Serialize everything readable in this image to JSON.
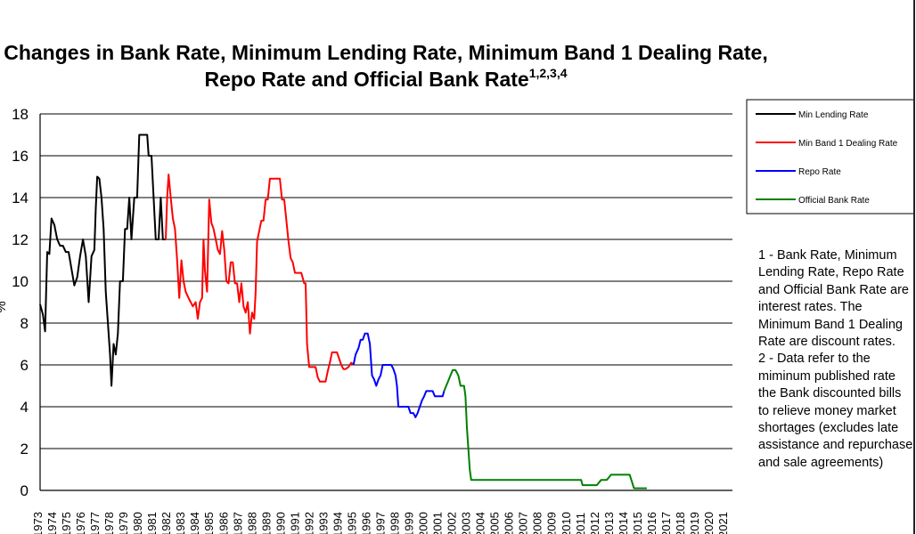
{
  "title": "Changes in Bank Rate, Minimum Lending Rate, Minimum Band 1 Dealing Rate, Repo Rate and Official Bank Rate",
  "title_superscript": "1,2,3,4",
  "ylabel": "%",
  "notes": [
    "1 - Bank Rate, Minimum Lending Rate, Repo Rate and Official Bank Rate are interest rates.  The Minimum Band 1 Dealing Rate are discount rates.",
    "2 - Data refer to the miminum published rate the Bank discounted bills to relieve money market shortages (excludes late assistance and repurchase and sale agreements)"
  ],
  "chart_data": {
    "type": "line",
    "title": "Changes in Bank Rate, Minimum Lending Rate, Minimum Band 1 Dealing Rate, Repo Rate and Official Bank Rate",
    "ylabel": "%",
    "ylim": [
      0,
      18
    ],
    "yticks": [
      0,
      2,
      4,
      6,
      8,
      10,
      12,
      14,
      16,
      18
    ],
    "xlim": [
      1973,
      2021.5
    ],
    "xticks": [
      1973,
      1974,
      1975,
      1976,
      1977,
      1978,
      1979,
      1980,
      1981,
      1982,
      1983,
      1984,
      1985,
      1986,
      1987,
      1988,
      1989,
      1990,
      1991,
      1992,
      1993,
      1994,
      1995,
      1996,
      1997,
      1998,
      1999,
      2000,
      2001,
      2002,
      2003,
      2004,
      2005,
      2006,
      2007,
      2008,
      2009,
      2010,
      2011,
      2012,
      2013,
      2014,
      2015,
      2016,
      2017,
      2018,
      2019,
      2020,
      2021
    ],
    "grid": "horizontal",
    "legend_position": "top-right",
    "series": [
      {
        "name": "Min Lending Rate",
        "color": "#000000",
        "points": [
          [
            1973.0,
            8.9
          ],
          [
            1973.2,
            8.4
          ],
          [
            1973.35,
            7.6
          ],
          [
            1973.5,
            11.4
          ],
          [
            1973.65,
            11.3
          ],
          [
            1973.8,
            13.0
          ],
          [
            1974.0,
            12.7
          ],
          [
            1974.2,
            12.0
          ],
          [
            1974.4,
            11.7
          ],
          [
            1974.6,
            11.7
          ],
          [
            1974.8,
            11.4
          ],
          [
            1975.0,
            11.4
          ],
          [
            1975.2,
            10.6
          ],
          [
            1975.4,
            9.8
          ],
          [
            1975.6,
            10.2
          ],
          [
            1975.8,
            11.2
          ],
          [
            1976.0,
            12.0
          ],
          [
            1976.2,
            11.2
          ],
          [
            1976.4,
            9.0
          ],
          [
            1976.6,
            11.2
          ],
          [
            1976.8,
            11.5
          ],
          [
            1976.9,
            13.5
          ],
          [
            1977.0,
            15.0
          ],
          [
            1977.15,
            14.9
          ],
          [
            1977.3,
            14.0
          ],
          [
            1977.45,
            12.5
          ],
          [
            1977.6,
            9.5
          ],
          [
            1977.75,
            8.0
          ],
          [
            1977.9,
            6.5
          ],
          [
            1978.0,
            5.0
          ],
          [
            1978.15,
            7.0
          ],
          [
            1978.3,
            6.5
          ],
          [
            1978.45,
            7.5
          ],
          [
            1978.6,
            10.0
          ],
          [
            1978.8,
            10.0
          ],
          [
            1978.95,
            12.5
          ],
          [
            1979.1,
            12.5
          ],
          [
            1979.25,
            14.0
          ],
          [
            1979.4,
            12.0
          ],
          [
            1979.6,
            14.0
          ],
          [
            1979.8,
            14.0
          ],
          [
            1979.95,
            17.0
          ],
          [
            1980.5,
            17.0
          ],
          [
            1980.6,
            16.0
          ],
          [
            1980.8,
            16.0
          ],
          [
            1980.95,
            14.0
          ],
          [
            1981.1,
            12.0
          ],
          [
            1981.3,
            12.0
          ],
          [
            1981.45,
            14.0
          ],
          [
            1981.6,
            12.0
          ],
          [
            1981.8,
            12.0
          ]
        ]
      },
      {
        "name": "Min Band 1 Dealing Rate",
        "color": "#ff0000",
        "points": [
          [
            1981.8,
            12.0
          ],
          [
            1981.9,
            14.0
          ],
          [
            1982.0,
            15.1
          ],
          [
            1982.15,
            14.0
          ],
          [
            1982.3,
            13.0
          ],
          [
            1982.45,
            12.5
          ],
          [
            1982.6,
            11.0
          ],
          [
            1982.75,
            9.2
          ],
          [
            1982.9,
            11.0
          ],
          [
            1983.05,
            10.0
          ],
          [
            1983.2,
            9.5
          ],
          [
            1983.4,
            9.2
          ],
          [
            1983.55,
            9.0
          ],
          [
            1983.7,
            8.8
          ],
          [
            1983.9,
            9.0
          ],
          [
            1984.05,
            8.2
          ],
          [
            1984.2,
            9.0
          ],
          [
            1984.35,
            9.2
          ],
          [
            1984.45,
            12.0
          ],
          [
            1984.55,
            10.5
          ],
          [
            1984.7,
            9.5
          ],
          [
            1984.85,
            13.9
          ],
          [
            1985.0,
            12.8
          ],
          [
            1985.15,
            12.5
          ],
          [
            1985.3,
            12.0
          ],
          [
            1985.45,
            11.5
          ],
          [
            1985.6,
            11.3
          ],
          [
            1985.75,
            12.4
          ],
          [
            1985.9,
            11.5
          ],
          [
            1986.05,
            10.0
          ],
          [
            1986.2,
            9.9
          ],
          [
            1986.35,
            10.9
          ],
          [
            1986.5,
            10.9
          ],
          [
            1986.65,
            9.9
          ],
          [
            1986.8,
            9.9
          ],
          [
            1986.95,
            9.0
          ],
          [
            1987.1,
            9.9
          ],
          [
            1987.25,
            8.8
          ],
          [
            1987.4,
            8.5
          ],
          [
            1987.55,
            9.0
          ],
          [
            1987.7,
            7.5
          ],
          [
            1987.85,
            8.5
          ],
          [
            1988.0,
            8.2
          ],
          [
            1988.1,
            9.5
          ],
          [
            1988.2,
            11.9
          ],
          [
            1988.35,
            12.4
          ],
          [
            1988.5,
            12.9
          ],
          [
            1988.65,
            12.9
          ],
          [
            1988.8,
            13.9
          ],
          [
            1988.95,
            13.9
          ],
          [
            1989.1,
            14.9
          ],
          [
            1989.5,
            14.9
          ],
          [
            1989.8,
            14.9
          ],
          [
            1989.95,
            13.9
          ],
          [
            1990.1,
            13.9
          ],
          [
            1990.25,
            12.9
          ],
          [
            1990.4,
            11.9
          ],
          [
            1990.55,
            11.1
          ],
          [
            1990.7,
            10.9
          ],
          [
            1990.85,
            10.4
          ],
          [
            1991.0,
            10.4
          ],
          [
            1991.3,
            10.4
          ],
          [
            1991.5,
            9.9
          ],
          [
            1991.6,
            9.9
          ],
          [
            1991.7,
            7.0
          ],
          [
            1991.85,
            5.9
          ],
          [
            1992.0,
            5.9
          ],
          [
            1992.3,
            5.9
          ],
          [
            1992.45,
            5.4
          ],
          [
            1992.6,
            5.2
          ],
          [
            1992.8,
            5.2
          ],
          [
            1993.0,
            5.2
          ],
          [
            1993.15,
            5.7
          ],
          [
            1993.3,
            6.1
          ],
          [
            1993.45,
            6.6
          ],
          [
            1993.6,
            6.6
          ],
          [
            1993.8,
            6.6
          ],
          [
            1993.95,
            6.3
          ],
          [
            1994.1,
            6.0
          ],
          [
            1994.25,
            5.8
          ],
          [
            1994.4,
            5.8
          ],
          [
            1994.6,
            5.9
          ],
          [
            1994.8,
            6.1
          ],
          [
            1994.95,
            6.0
          ]
        ]
      },
      {
        "name": "Repo Rate",
        "color": "#0000ff",
        "points": [
          [
            1994.95,
            6.0
          ],
          [
            1995.1,
            6.5
          ],
          [
            1995.3,
            6.8
          ],
          [
            1995.45,
            7.2
          ],
          [
            1995.6,
            7.2
          ],
          [
            1995.75,
            7.5
          ],
          [
            1995.95,
            7.5
          ],
          [
            1996.1,
            7.0
          ],
          [
            1996.25,
            5.5
          ],
          [
            1996.4,
            5.3
          ],
          [
            1996.55,
            5.0
          ],
          [
            1996.7,
            5.3
          ],
          [
            1996.85,
            5.5
          ],
          [
            1997.0,
            6.0
          ],
          [
            1997.2,
            6.0
          ],
          [
            1997.4,
            6.0
          ],
          [
            1997.6,
            6.0
          ],
          [
            1997.75,
            5.8
          ],
          [
            1997.9,
            5.5
          ],
          [
            1998.0,
            5.0
          ],
          [
            1998.1,
            4.0
          ],
          [
            1998.3,
            4.0
          ],
          [
            1998.6,
            4.0
          ],
          [
            1998.8,
            4.0
          ],
          [
            1998.95,
            3.7
          ],
          [
            1999.15,
            3.7
          ],
          [
            1999.3,
            3.5
          ],
          [
            1999.45,
            3.7
          ],
          [
            1999.6,
            4.0
          ],
          [
            1999.75,
            4.3
          ],
          [
            1999.9,
            4.5
          ],
          [
            2000.05,
            4.75
          ],
          [
            2000.3,
            4.75
          ],
          [
            2000.5,
            4.75
          ],
          [
            2000.65,
            4.5
          ],
          [
            2000.8,
            4.5
          ],
          [
            2001.2,
            4.5
          ],
          [
            2001.3,
            4.75
          ]
        ]
      },
      {
        "name": "Official Bank Rate",
        "color": "#008000",
        "points": [
          [
            2001.3,
            4.75
          ],
          [
            2001.45,
            5.0
          ],
          [
            2001.6,
            5.25
          ],
          [
            2001.75,
            5.5
          ],
          [
            2001.9,
            5.75
          ],
          [
            2002.1,
            5.75
          ],
          [
            2002.3,
            5.5
          ],
          [
            2002.45,
            5.0
          ],
          [
            2002.7,
            5.0
          ],
          [
            2002.8,
            4.5
          ],
          [
            2002.9,
            3.0
          ],
          [
            2003.0,
            2.0
          ],
          [
            2003.1,
            1.0
          ],
          [
            2003.2,
            0.5
          ],
          [
            2004.0,
            0.5
          ],
          [
            2006.0,
            0.5
          ],
          [
            2008.0,
            0.5
          ],
          [
            2009.0,
            0.5
          ],
          [
            2010.0,
            0.5
          ],
          [
            2010.9,
            0.5
          ],
          [
            2011.0,
            0.25
          ],
          [
            2011.5,
            0.25
          ],
          [
            2012.0,
            0.25
          ],
          [
            2012.3,
            0.5
          ],
          [
            2012.7,
            0.5
          ],
          [
            2013.0,
            0.75
          ],
          [
            2013.6,
            0.75
          ],
          [
            2014.3,
            0.75
          ],
          [
            2014.6,
            0.1
          ],
          [
            2015.5,
            0.1
          ]
        ]
      }
    ]
  }
}
